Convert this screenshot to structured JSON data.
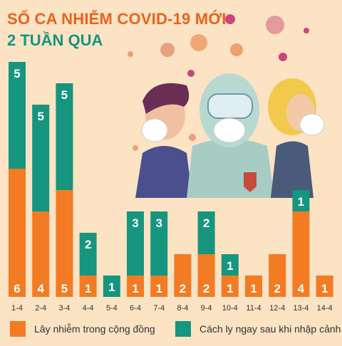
{
  "title_line1": "SỐ CA NHIỄM COVID-19 MỚI",
  "title_line2": "2 TUẦN QUA",
  "colors": {
    "background": "#fbe3c4",
    "community": "#f27b23",
    "quarantine": "#16957f",
    "title_orange": "#e8631c",
    "title_teal": "#16957f"
  },
  "chart_data": {
    "type": "bar",
    "stacked": true,
    "categories": [
      "1-4",
      "2-4",
      "3-4",
      "4-4",
      "5-4",
      "6-4",
      "7-4",
      "8-4",
      "9-4",
      "10-4",
      "11-4",
      "12-4",
      "13-4",
      "14-4"
    ],
    "series": [
      {
        "name": "Lây nhiễm trong cộng đồng",
        "color": "#f27b23",
        "values": [
          6,
          4,
          5,
          1,
          0,
          1,
          1,
          2,
          2,
          1,
          1,
          2,
          4,
          1
        ]
      },
      {
        "name": "Cách ly ngay sau khi nhập cảnh",
        "color": "#16957f",
        "values": [
          5,
          5,
          5,
          2,
          1,
          3,
          3,
          0,
          2,
          1,
          0,
          0,
          1,
          0
        ]
      }
    ]
  },
  "legend": [
    {
      "label": "Lây nhiễm trong cộng đồng",
      "color": "#f27b23"
    },
    {
      "label": "Cách ly ngay sau khi nhập cảnh",
      "color": "#16957f"
    }
  ]
}
